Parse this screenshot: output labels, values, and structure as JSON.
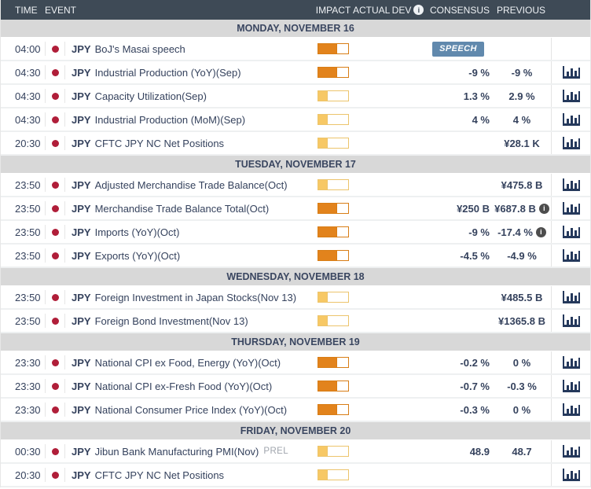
{
  "header": {
    "time": "TIME",
    "event": "EVENT",
    "impact": "IMPACT",
    "actual": "ACTUAL",
    "dev": "DEV",
    "dev_info_icon": "i",
    "consensus": "CONSENSUS",
    "previous": "PREVIOUS"
  },
  "colors": {
    "header_bg": "#3e4a56",
    "day_bar_bg": "#d8d8d8",
    "text_navy": "#35425d",
    "volatility_dot": "#b01e39",
    "impact_high": "#e2831c",
    "impact_low": "#f7c865",
    "speech_badge_bg": "#6189ad",
    "chart_icon": "#24385b",
    "info_icon_bg": "#4d4d4d"
  },
  "sections": [
    {
      "date": "MONDAY, NOVEMBER 16",
      "rows": [
        {
          "time": "04:00",
          "currency": "JPY",
          "event": "BoJ's Masai speech",
          "tag": "",
          "impact": "high",
          "actual": "",
          "dev": "",
          "consensus": "",
          "badge": "SPEECH",
          "previous": "",
          "previous_info": false,
          "has_chart": false
        },
        {
          "time": "04:30",
          "currency": "JPY",
          "event": "Industrial Production (YoY)(Sep)",
          "tag": "",
          "impact": "high",
          "actual": "",
          "dev": "",
          "consensus": "-9 %",
          "badge": "",
          "previous": "-9 %",
          "previous_info": false,
          "has_chart": true
        },
        {
          "time": "04:30",
          "currency": "JPY",
          "event": "Capacity Utilization(Sep)",
          "tag": "",
          "impact": "low",
          "actual": "",
          "dev": "",
          "consensus": "1.3 %",
          "badge": "",
          "previous": "2.9 %",
          "previous_info": false,
          "has_chart": true
        },
        {
          "time": "04:30",
          "currency": "JPY",
          "event": "Industrial Production (MoM)(Sep)",
          "tag": "",
          "impact": "low",
          "actual": "",
          "dev": "",
          "consensus": "4 %",
          "badge": "",
          "previous": "4 %",
          "previous_info": false,
          "has_chart": true
        },
        {
          "time": "20:30",
          "currency": "JPY",
          "event": "CFTC JPY NC Net Positions",
          "tag": "",
          "impact": "low",
          "actual": "",
          "dev": "",
          "consensus": "",
          "badge": "",
          "previous": "¥28.1 K",
          "previous_info": false,
          "has_chart": true
        }
      ]
    },
    {
      "date": "TUESDAY, NOVEMBER 17",
      "rows": [
        {
          "time": "23:50",
          "currency": "JPY",
          "event": "Adjusted Merchandise Trade Balance(Oct)",
          "tag": "",
          "impact": "low",
          "actual": "",
          "dev": "",
          "consensus": "",
          "badge": "",
          "previous": "¥475.8 B",
          "previous_info": false,
          "has_chart": true
        },
        {
          "time": "23:50",
          "currency": "JPY",
          "event": "Merchandise Trade Balance Total(Oct)",
          "tag": "",
          "impact": "high",
          "actual": "",
          "dev": "",
          "consensus": "¥250 B",
          "badge": "",
          "previous": "¥687.8 B",
          "previous_info": true,
          "has_chart": true
        },
        {
          "time": "23:50",
          "currency": "JPY",
          "event": "Imports (YoY)(Oct)",
          "tag": "",
          "impact": "high",
          "actual": "",
          "dev": "",
          "consensus": "-9 %",
          "badge": "",
          "previous": "-17.4 %",
          "previous_info": true,
          "has_chart": true
        },
        {
          "time": "23:50",
          "currency": "JPY",
          "event": "Exports (YoY)(Oct)",
          "tag": "",
          "impact": "high",
          "actual": "",
          "dev": "",
          "consensus": "-4.5 %",
          "badge": "",
          "previous": "-4.9 %",
          "previous_info": false,
          "has_chart": true
        }
      ]
    },
    {
      "date": "WEDNESDAY, NOVEMBER 18",
      "rows": [
        {
          "time": "23:50",
          "currency": "JPY",
          "event": "Foreign Investment in Japan Stocks(Nov 13)",
          "tag": "",
          "impact": "low",
          "actual": "",
          "dev": "",
          "consensus": "",
          "badge": "",
          "previous": "¥485.5 B",
          "previous_info": false,
          "has_chart": true
        },
        {
          "time": "23:50",
          "currency": "JPY",
          "event": "Foreign Bond Investment(Nov 13)",
          "tag": "",
          "impact": "low",
          "actual": "",
          "dev": "",
          "consensus": "",
          "badge": "",
          "previous": "¥1365.8 B",
          "previous_info": false,
          "has_chart": true
        }
      ]
    },
    {
      "date": "THURSDAY, NOVEMBER 19",
      "rows": [
        {
          "time": "23:30",
          "currency": "JPY",
          "event": "National CPI ex Food, Energy (YoY)(Oct)",
          "tag": "",
          "impact": "high",
          "actual": "",
          "dev": "",
          "consensus": "-0.2 %",
          "badge": "",
          "previous": "0 %",
          "previous_info": false,
          "has_chart": true
        },
        {
          "time": "23:30",
          "currency": "JPY",
          "event": "National CPI ex-Fresh Food (YoY)(Oct)",
          "tag": "",
          "impact": "high",
          "actual": "",
          "dev": "",
          "consensus": "-0.7 %",
          "badge": "",
          "previous": "-0.3 %",
          "previous_info": false,
          "has_chart": true
        },
        {
          "time": "23:30",
          "currency": "JPY",
          "event": "National Consumer Price Index (YoY)(Oct)",
          "tag": "",
          "impact": "high",
          "actual": "",
          "dev": "",
          "consensus": "-0.3 %",
          "badge": "",
          "previous": "0 %",
          "previous_info": false,
          "has_chart": true
        }
      ]
    },
    {
      "date": "FRIDAY, NOVEMBER 20",
      "rows": [
        {
          "time": "00:30",
          "currency": "JPY",
          "event": "Jibun Bank Manufacturing PMI(Nov)",
          "tag": "PREL",
          "impact": "low",
          "actual": "",
          "dev": "",
          "consensus": "48.9",
          "badge": "",
          "previous": "48.7",
          "previous_info": false,
          "has_chart": true
        },
        {
          "time": "20:30",
          "currency": "JPY",
          "event": "CFTC JPY NC Net Positions",
          "tag": "",
          "impact": "low",
          "actual": "",
          "dev": "",
          "consensus": "",
          "badge": "",
          "previous": "",
          "previous_info": false,
          "has_chart": true
        }
      ]
    }
  ]
}
